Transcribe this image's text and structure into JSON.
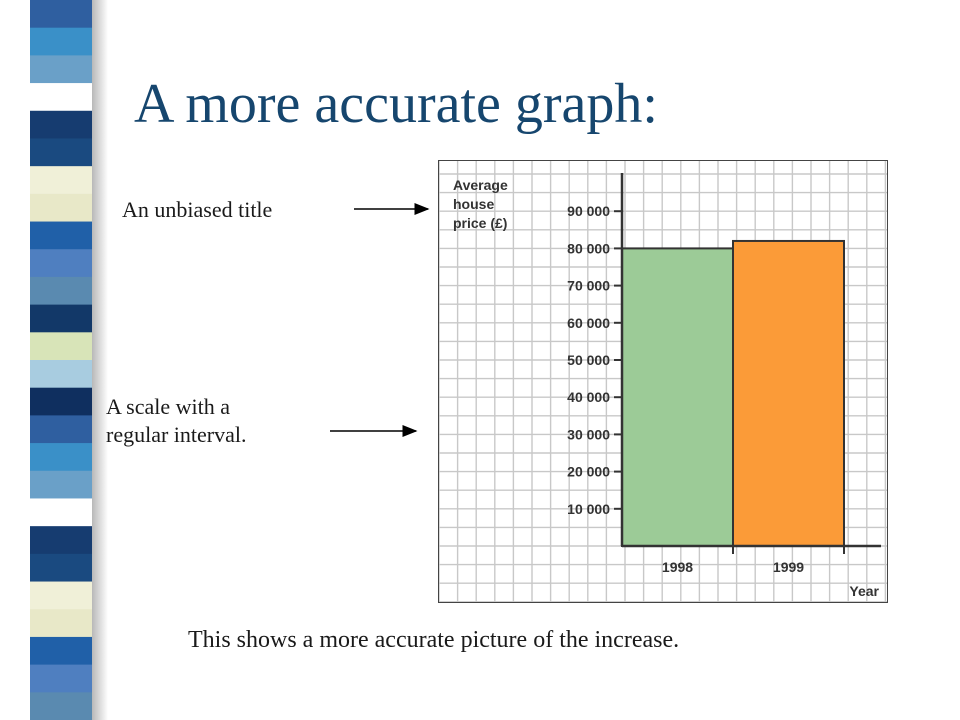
{
  "slide": {
    "title": "A more accurate graph:",
    "annotation_title": "An unbiased title",
    "annotation_scale": [
      "A scale with a",
      "regular interval."
    ],
    "caption": "This shows a more accurate picture of the increase.",
    "stripe_colors": [
      "#2f5fa0",
      "#a8cce0",
      "#123868",
      "#4f7fc0",
      "#e8e8c8",
      "#1a4a80",
      "#ffffff",
      "#3a90c8",
      "#0f2f5f",
      "#d8e4b8",
      "#5a8ab0",
      "#2060a8",
      "#f0f0d8",
      "#163c70",
      "#6aa0c8"
    ]
  },
  "chart_data": {
    "type": "bar",
    "categories": [
      "1998",
      "1999"
    ],
    "values": [
      80000,
      82000
    ],
    "colors": [
      "#9ccb97",
      "#fb9b38"
    ],
    "ylabel_lines": [
      "Average",
      "house",
      "price (£)"
    ],
    "xlabel": "Year",
    "yticks": [
      10000,
      20000,
      30000,
      40000,
      50000,
      60000,
      70000,
      80000,
      90000
    ],
    "ytick_labels": [
      "10 000",
      "20 000",
      "30 000",
      "40 000",
      "50 000",
      "60 000",
      "70 000",
      "80 000",
      "90 000"
    ],
    "ylim": [
      0,
      100000
    ],
    "grid": true,
    "legend": "none"
  }
}
